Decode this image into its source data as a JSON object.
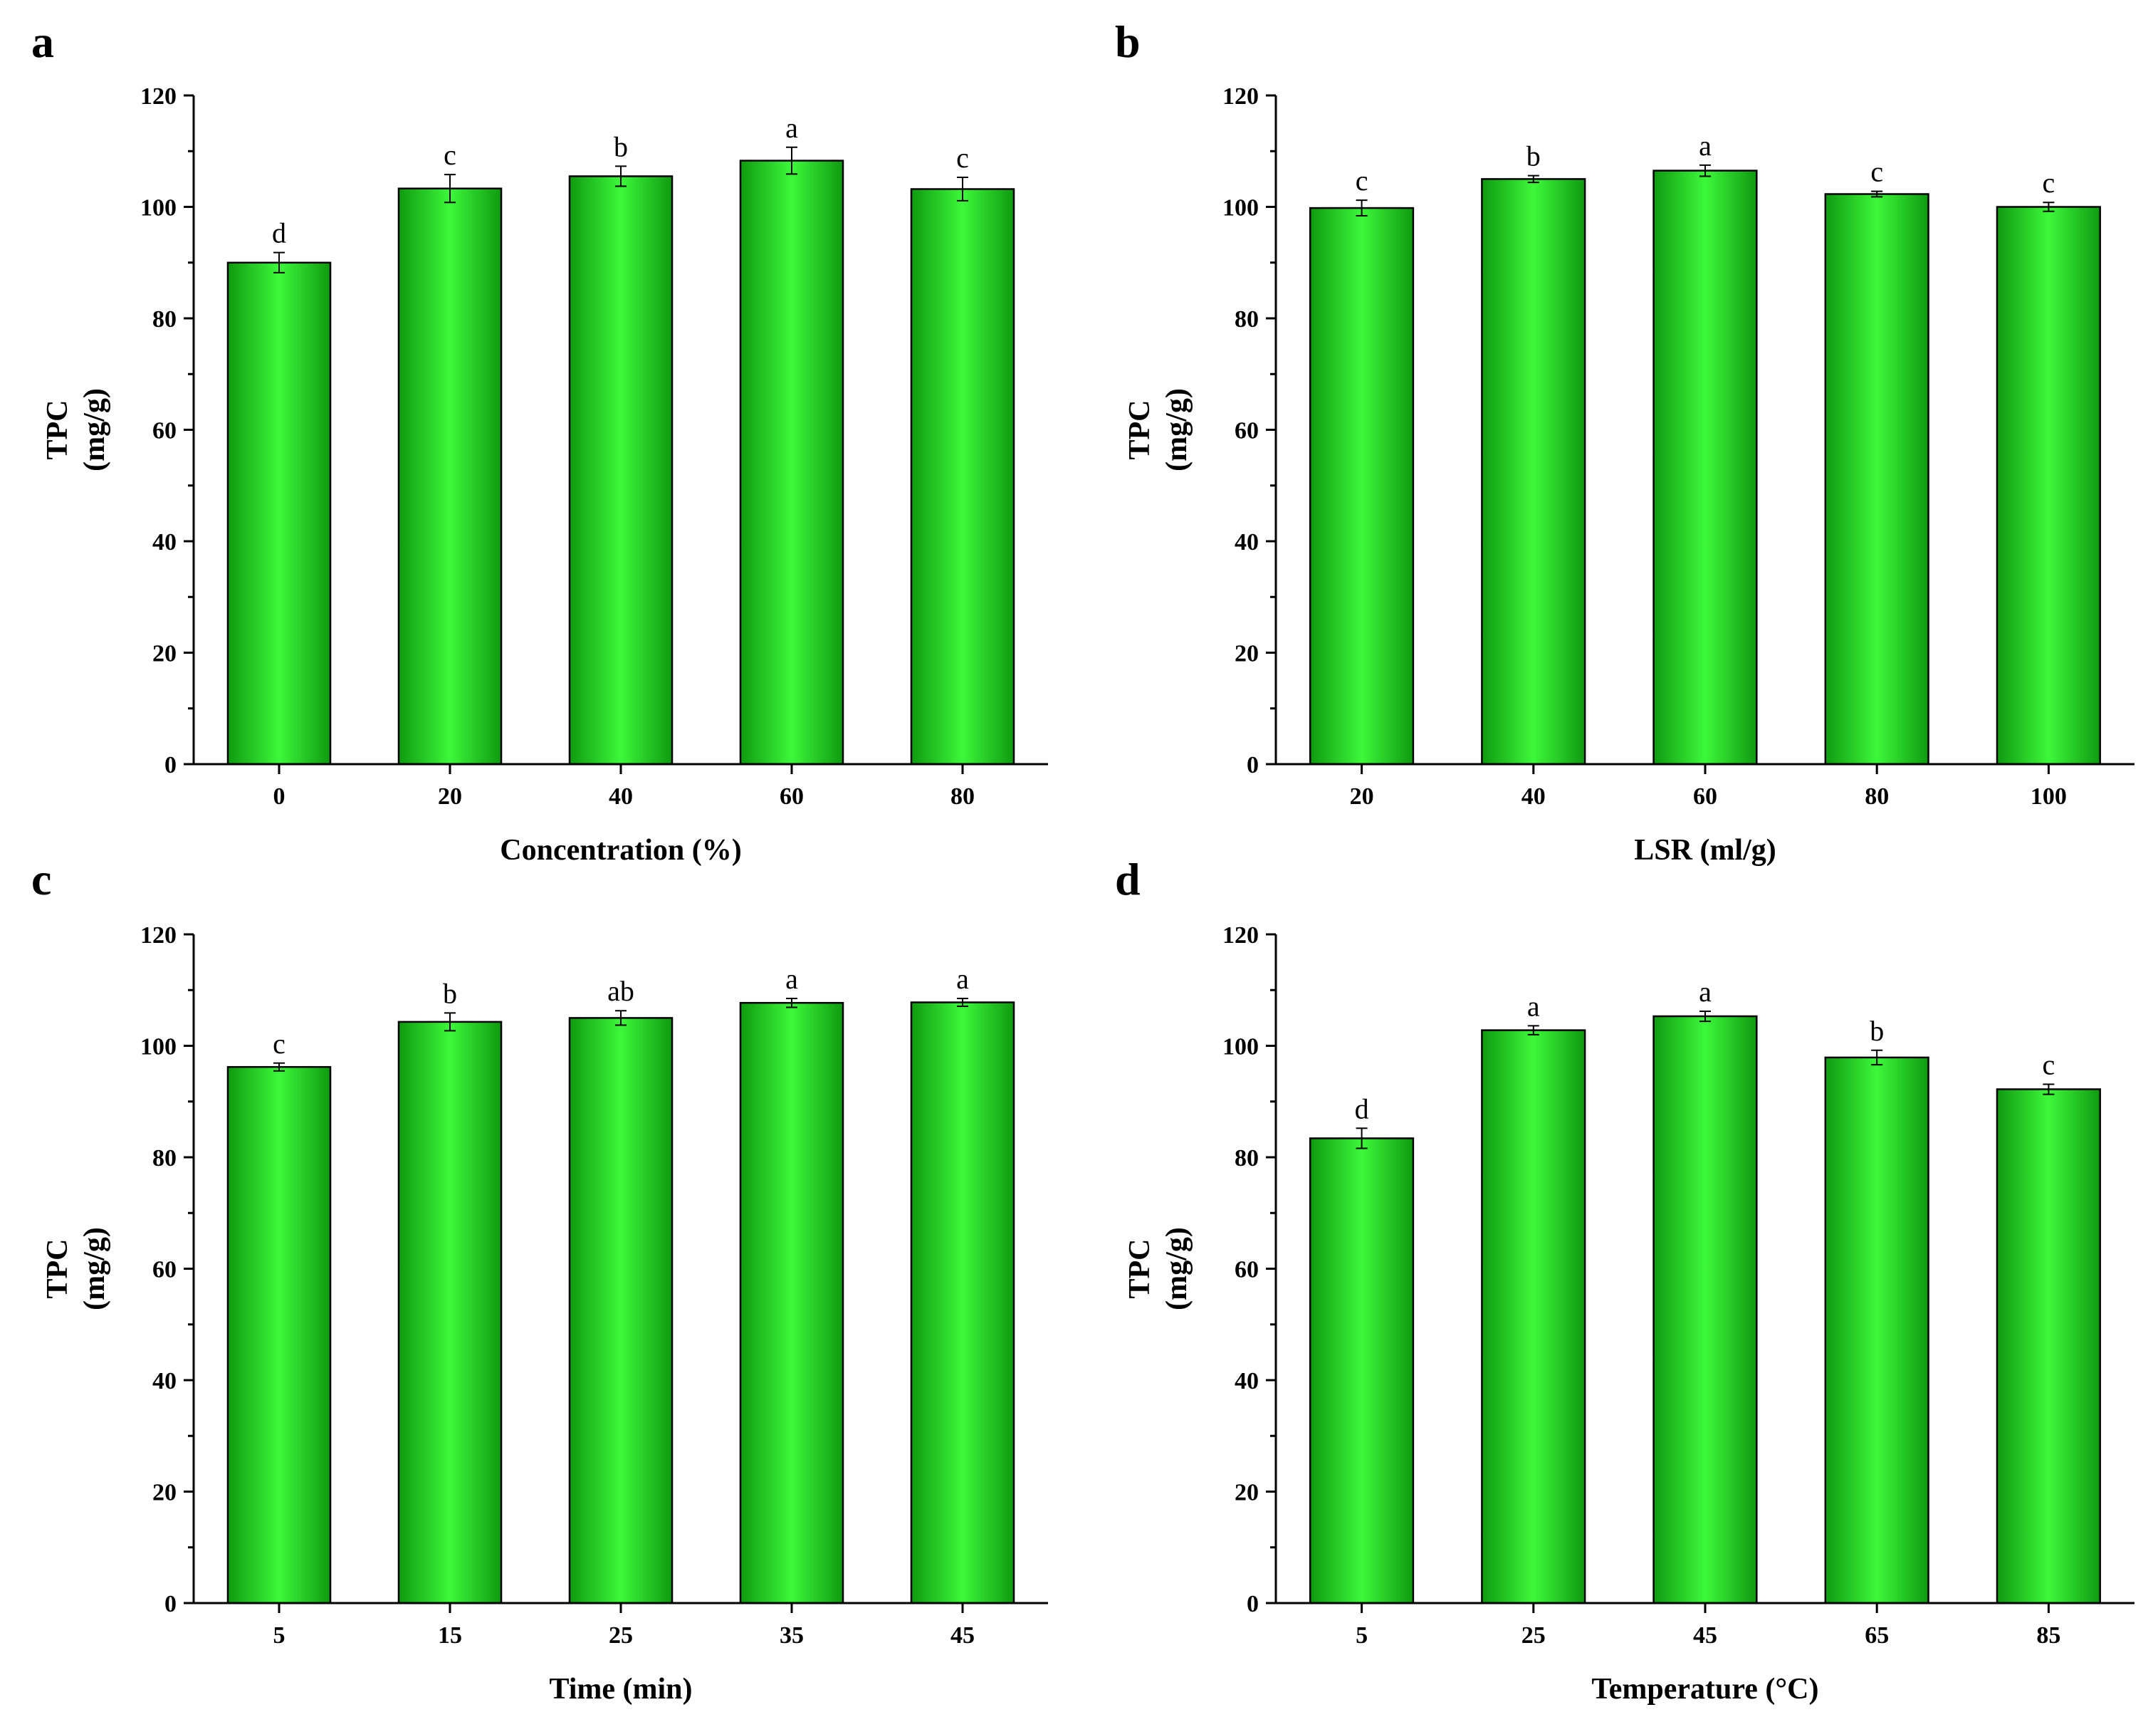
{
  "colors": {
    "bar_dark": "#0f9a10",
    "bar_light": "#3df83a",
    "axis": "#000000"
  },
  "chart_data": [
    {
      "panel": "a",
      "type": "bar",
      "categories": [
        "0",
        "20",
        "40",
        "60",
        "80"
      ],
      "values": [
        90,
        103.3,
        105.5,
        108.3,
        103.2
      ],
      "errors": [
        1.8,
        2.5,
        1.8,
        2.4,
        2.1
      ],
      "significance": [
        "d",
        "c",
        "b",
        "a",
        "c"
      ],
      "xlabel": "Concentration (%)",
      "ylabel": "TPC",
      "ylabel_unit": "(mg/g)",
      "ylim": [
        0,
        120
      ],
      "yticks": [
        "0",
        "20",
        "40",
        "60",
        "80",
        "100",
        "120"
      ],
      "grid": false
    },
    {
      "panel": "b",
      "type": "bar",
      "categories": [
        "20",
        "40",
        "60",
        "80",
        "100"
      ],
      "values": [
        99.8,
        105,
        106.5,
        102.3,
        100
      ],
      "errors": [
        1.4,
        0.6,
        1.0,
        0.5,
        0.8
      ],
      "significance": [
        "c",
        "b",
        "a",
        "c",
        "c"
      ],
      "xlabel": "LSR (ml/g)",
      "ylabel": "TPC",
      "ylabel_unit": "(mg/g)",
      "ylim": [
        0,
        120
      ],
      "yticks": [
        "0",
        "20",
        "40",
        "60",
        "80",
        "100",
        "120"
      ],
      "grid": false
    },
    {
      "panel": "c",
      "type": "bar",
      "categories": [
        "5",
        "15",
        "25",
        "35",
        "45"
      ],
      "values": [
        96.2,
        104.3,
        105,
        107.7,
        107.8
      ],
      "errors": [
        0.7,
        1.6,
        1.3,
        0.8,
        0.7
      ],
      "significance": [
        "c",
        "b",
        "ab",
        "a",
        "a"
      ],
      "xlabel": "Time (min)",
      "ylabel": "TPC",
      "ylabel_unit": "(mg/g)",
      "ylim": [
        0,
        120
      ],
      "yticks": [
        "0",
        "20",
        "40",
        "60",
        "80",
        "100",
        "120"
      ],
      "grid": false
    },
    {
      "panel": "d",
      "type": "bar",
      "categories": [
        "5",
        "25",
        "45",
        "65",
        "85"
      ],
      "values": [
        83.4,
        102.8,
        105.3,
        97.9,
        92.2
      ],
      "errors": [
        1.8,
        0.8,
        0.9,
        1.3,
        0.9
      ],
      "significance": [
        "d",
        "a",
        "a",
        "b",
        "c"
      ],
      "xlabel": "Temperature (°C)",
      "ylabel": "TPC",
      "ylabel_unit": "(mg/g)",
      "ylim": [
        0,
        120
      ],
      "yticks": [
        "0",
        "20",
        "40",
        "60",
        "80",
        "100",
        "120"
      ],
      "grid": false
    }
  ]
}
